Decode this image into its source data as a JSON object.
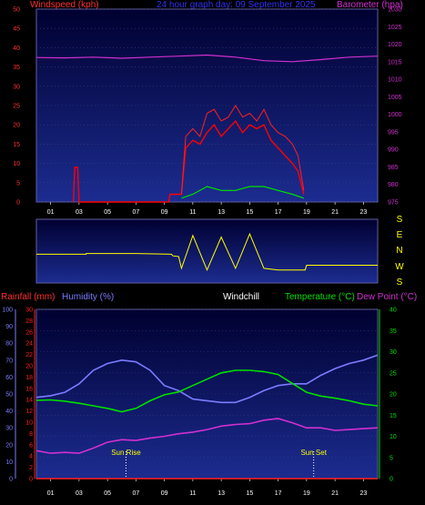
{
  "colors": {
    "background": "#000000",
    "plot_top": "#000040",
    "plot_bottom": "#1a2a8c",
    "wind_speed": "#ff0000",
    "wind_gust": "#ff2020",
    "barometer": "#d030d0",
    "wind_dir": "#ffff00",
    "humidity": "#7b7bff",
    "temperature": "#00e000",
    "dewpoint": "#d030d0",
    "rainfall": "#ff2020",
    "white": "#ffffff"
  },
  "header": {
    "windspeed_label": "Windspeed (kph)",
    "title": "24 hour graph day: 09 September 2025",
    "barometer_label": "Barometer (hpa)",
    "rainfall_label": "Rainfall (mm)",
    "humidity_label": "Humidity (%)",
    "windchill_label": "Windchill",
    "temperature_label": "Temperature (°C)",
    "dewpoint_label": "Dew Point (°C)"
  },
  "direction_labels": [
    "S",
    "E",
    "N",
    "W",
    "S"
  ],
  "sun": {
    "rise_label": "Sun Rise",
    "set_label": "Sun Set",
    "rise_hour": 6.3,
    "set_hour": 19.5
  },
  "chart_data": [
    {
      "type": "line",
      "panel": "wind-barometer",
      "x_label_hours": [
        "01",
        "03",
        "05",
        "07",
        "09",
        "11",
        "13",
        "15",
        "17",
        "19",
        "21",
        "23"
      ],
      "left_axis": {
        "label": "Windspeed (kph)",
        "range": [
          0,
          50
        ],
        "ticks": [
          0,
          5,
          10,
          15,
          20,
          25,
          30,
          35,
          40,
          45,
          50
        ]
      },
      "right_axis": {
        "label": "Barometer (hpa)",
        "range": [
          975,
          1030
        ],
        "ticks": [
          975,
          980,
          985,
          990,
          995,
          1000,
          1005,
          1010,
          1015,
          1020,
          1025,
          1030
        ]
      },
      "series": [
        {
          "name": "Barometer (hpa)",
          "axis": "right",
          "x": [
            0,
            2,
            4,
            6,
            8,
            10,
            12,
            14,
            16,
            18,
            20,
            22,
            24
          ],
          "values": [
            1016.2,
            1016.1,
            1016.3,
            1016.0,
            1016.3,
            1016.6,
            1016.9,
            1016.3,
            1015.3,
            1015.0,
            1015.6,
            1016.3,
            1016.6
          ]
        },
        {
          "name": "Windspeed (kph)",
          "axis": "left",
          "x": [
            2.6,
            2.7,
            2.8,
            2.9,
            3.0,
            9.3,
            9.4,
            10.2,
            10.5,
            11,
            11.5,
            12,
            12.5,
            13,
            13.5,
            14,
            14.5,
            15,
            15.5,
            16,
            16.5,
            17,
            17.5,
            18,
            18.4,
            18.8
          ],
          "values": [
            0,
            9,
            9,
            9,
            0,
            0,
            2,
            2,
            14,
            16,
            15,
            18,
            20,
            17,
            19,
            21,
            18,
            20,
            19,
            20,
            16,
            14,
            12,
            10,
            8,
            2
          ]
        },
        {
          "name": "Wind gust peak (kph)",
          "axis": "left",
          "x": [
            10.2,
            10.5,
            11,
            11.5,
            12,
            12.5,
            13,
            13.5,
            14,
            14.5,
            15,
            15.5,
            16,
            16.5,
            17,
            17.5,
            18,
            18.4,
            18.8
          ],
          "values": [
            2,
            17,
            19,
            17,
            23,
            24,
            21,
            22,
            25,
            22,
            23,
            21,
            24,
            20,
            18,
            17,
            15,
            12,
            3
          ]
        },
        {
          "name": "Average wind (kph)",
          "axis": "left",
          "x": [
            10.2,
            11,
            12,
            13,
            14,
            15,
            16,
            17,
            18,
            18.8
          ],
          "values": [
            1,
            2,
            4,
            3,
            3,
            4,
            4,
            3,
            2,
            1
          ]
        }
      ]
    },
    {
      "type": "line",
      "panel": "wind-direction",
      "direction_range": [
        0,
        360
      ],
      "series": [
        {
          "name": "Wind direction (deg)",
          "x": [
            0,
            3.5,
            3.5,
            7,
            9.5,
            9.6,
            10.0,
            10.2,
            11,
            12,
            13,
            14,
            15,
            16,
            17,
            18,
            18.9,
            19.0,
            24
          ],
          "values": [
            200,
            200,
            195,
            195,
            200,
            210,
            215,
            290,
            80,
            300,
            90,
            290,
            70,
            290,
            300,
            300,
            300,
            270,
            270
          ]
        }
      ]
    },
    {
      "type": "line",
      "panel": "temperature-humidity",
      "x_label_hours": [
        "01",
        "03",
        "05",
        "07",
        "09",
        "11",
        "13",
        "15",
        "17",
        "19",
        "21",
        "23"
      ],
      "left_axis_humidity": {
        "label": "Humidity (%)",
        "range": [
          0,
          100
        ],
        "ticks": [
          0,
          10,
          20,
          30,
          40,
          50,
          60,
          70,
          80,
          90,
          100
        ]
      },
      "left_axis_rain": {
        "label": "Rainfall (mm)",
        "range": [
          0,
          30
        ],
        "ticks": [
          0,
          2,
          4,
          6,
          8,
          10,
          12,
          14,
          16,
          18,
          20,
          22,
          24,
          26,
          28,
          30
        ]
      },
      "right_axis": {
        "label": "Temperature (°C)",
        "range": [
          0,
          40
        ],
        "ticks": [
          0,
          5,
          10,
          15,
          20,
          25,
          30,
          35,
          40
        ]
      },
      "series": [
        {
          "name": "Humidity (%)",
          "axis": "humidity",
          "x": [
            0,
            1,
            2,
            3,
            4,
            5,
            6,
            7,
            8,
            9,
            10,
            11,
            12,
            13,
            14,
            15,
            16,
            17,
            18,
            19,
            20,
            21,
            22,
            23,
            24
          ],
          "values": [
            48,
            49,
            51,
            56,
            64,
            68,
            70,
            69,
            64,
            55,
            52,
            47,
            46,
            45,
            45,
            48,
            52,
            55,
            56,
            56,
            61,
            65,
            68,
            70,
            73
          ]
        },
        {
          "name": "Temperature (°C)",
          "axis": "right",
          "x": [
            0,
            1,
            2,
            3,
            4,
            5,
            6,
            7,
            8,
            9,
            10,
            11,
            12,
            13,
            14,
            15,
            16,
            17,
            18,
            19,
            20,
            21,
            22,
            23,
            24
          ],
          "values": [
            18.5,
            18.6,
            18.3,
            17.8,
            17.2,
            16.6,
            15.8,
            16.6,
            18.4,
            19.8,
            20.5,
            22.0,
            23.5,
            25.0,
            25.6,
            25.6,
            25.3,
            24.6,
            22.5,
            20.4,
            19.5,
            19.0,
            18.4,
            17.6,
            17.2
          ]
        },
        {
          "name": "Dew Point (°C)",
          "axis": "right",
          "x": [
            0,
            1,
            2,
            3,
            4,
            5,
            6,
            7,
            8,
            9,
            10,
            11,
            12,
            13,
            14,
            15,
            16,
            17,
            18,
            19,
            20,
            21,
            22,
            23,
            24
          ],
          "values": [
            6.6,
            6.0,
            6.2,
            6.0,
            7.2,
            8.6,
            9.2,
            9.0,
            9.6,
            10.0,
            10.6,
            11.0,
            11.6,
            12.4,
            12.8,
            13.0,
            13.8,
            14.2,
            13.2,
            12.0,
            12.0,
            11.4,
            11.6,
            11.8,
            12.0
          ]
        },
        {
          "name": "Rainfall (mm)",
          "axis": "rain",
          "x": [
            0,
            24
          ],
          "values": [
            0,
            0
          ]
        }
      ]
    }
  ]
}
